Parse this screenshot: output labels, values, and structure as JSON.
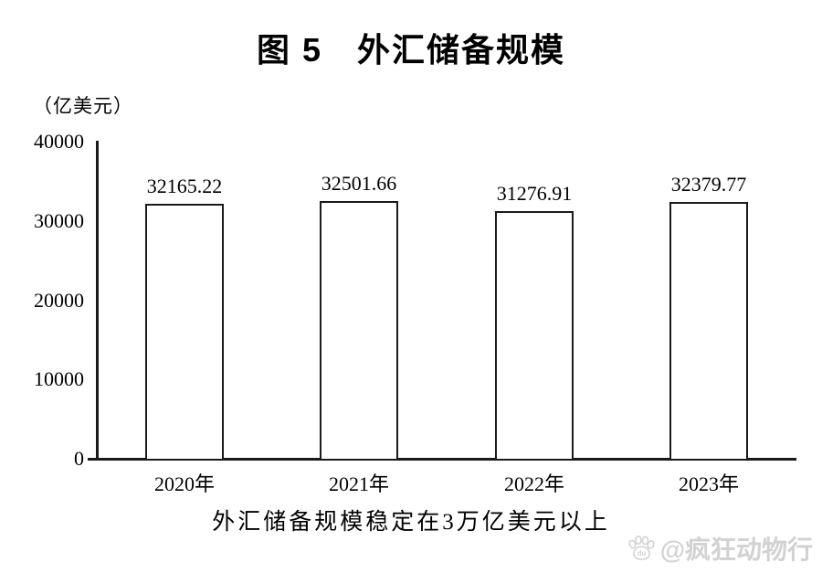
{
  "page": {
    "title": "图 5　外汇储备规模",
    "caption": "外汇储备规模稳定在3万亿美元以上",
    "watermark": {
      "icon": "baidu-paw-icon",
      "icon_text": "du",
      "text": "@疯狂动物行",
      "color": "#d2d2d2"
    }
  },
  "chart_data": {
    "type": "bar",
    "title": "图 5　外汇储备规模",
    "unit_label": "（亿美元）",
    "xlabel": "",
    "ylabel": "（亿美元）",
    "categories": [
      "2020年",
      "2021年",
      "2022年",
      "2023年"
    ],
    "values": [
      32165.22,
      32501.66,
      31276.91,
      32379.77
    ],
    "value_labels": [
      "32165.22",
      "32501.66",
      "31276.91",
      "32379.77"
    ],
    "ylim": [
      0,
      40000
    ],
    "yticks": [
      0,
      10000,
      20000,
      30000,
      40000
    ],
    "grid": false,
    "legend": null,
    "annotation": "外汇储备规模稳定在3万亿美元以上",
    "colors": {
      "bar_fill": "#ffffff",
      "bar_border": "#1a1a1a",
      "axis": "#1a1a1a",
      "text": "#000000",
      "watermark": "#d2d2d2"
    }
  }
}
